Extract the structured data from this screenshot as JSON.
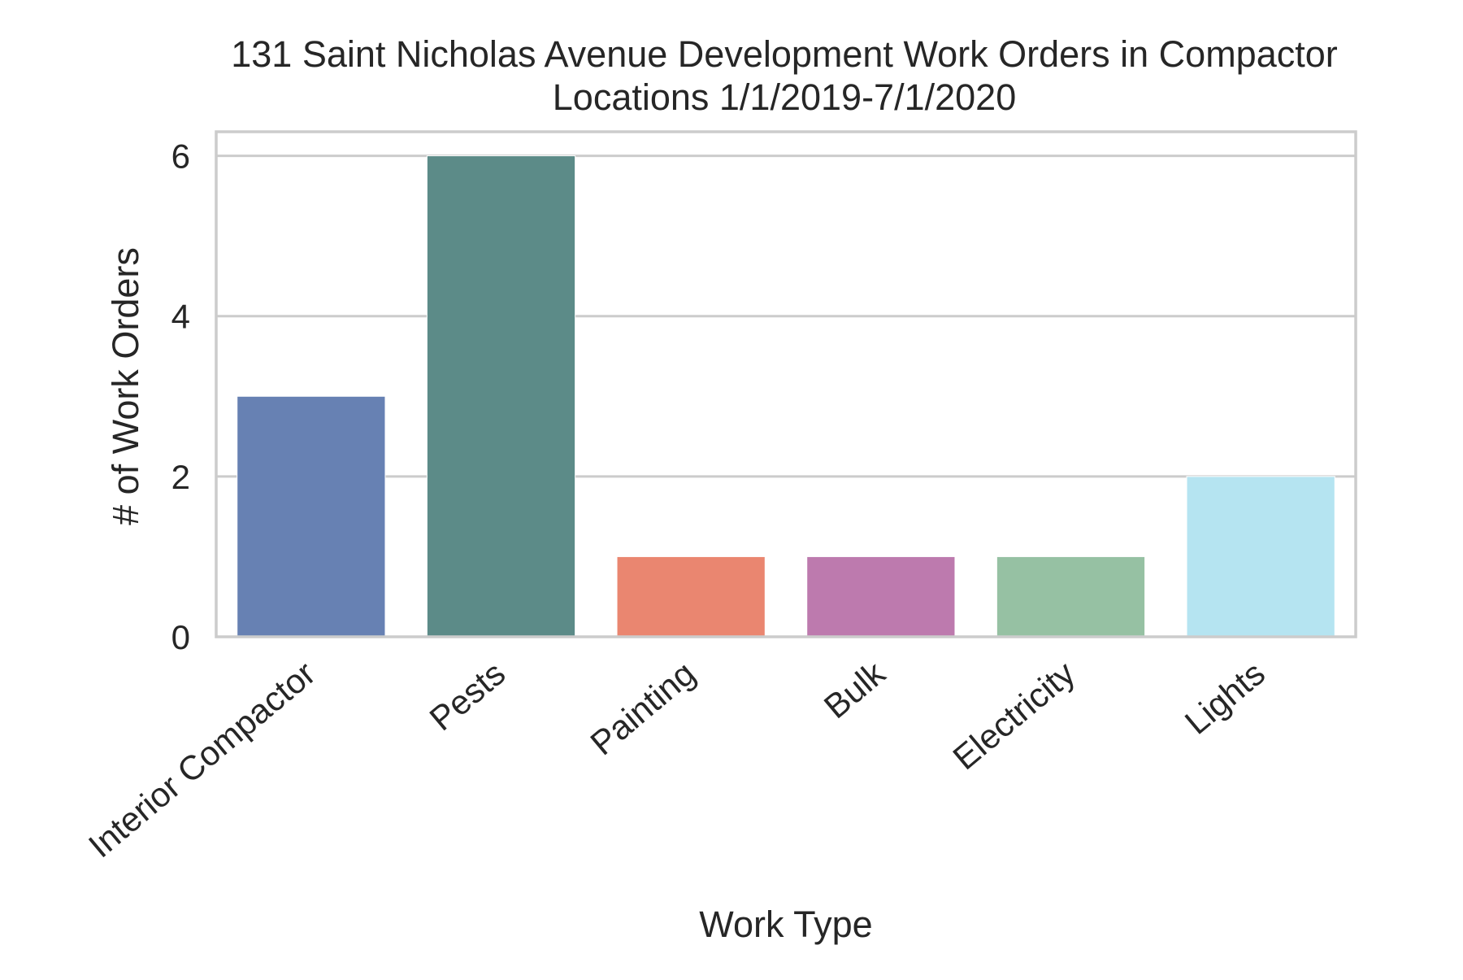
{
  "chart_data": {
    "type": "bar",
    "title_lines": [
      "131 Saint Nicholas Avenue Development Work Orders in Compactor",
      "Locations 1/1/2019-7/1/2020"
    ],
    "xlabel": "Work Type",
    "ylabel": "# of Work Orders",
    "categories": [
      "Interior Compactor",
      "Pests",
      "Painting",
      "Bulk",
      "Electricity",
      "Lights"
    ],
    "values": [
      3,
      6,
      1,
      1,
      1,
      2
    ],
    "colors": [
      "#6781b3",
      "#5c8b88",
      "#ea8670",
      "#bd7aae",
      "#96c1a3",
      "#b5e4f1"
    ],
    "ylim": [
      0,
      6.3
    ],
    "yticks": [
      0,
      2,
      4,
      6
    ],
    "grid": "horizontal",
    "legend": "none"
  }
}
